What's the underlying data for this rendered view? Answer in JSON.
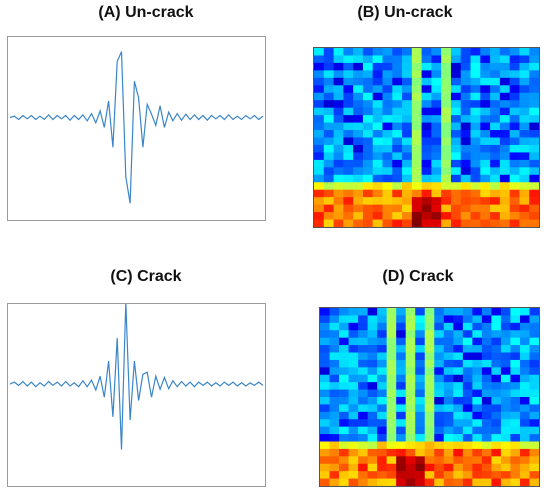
{
  "panels": {
    "a_title": "(A) Un-crack",
    "b_title": "(B) Un-crack",
    "c_title": "(C) Crack",
    "d_title": "(D) Crack"
  },
  "colors": {
    "signal": "#3a86c8",
    "frame": "#9a9a9a"
  },
  "chart_data": [
    {
      "type": "line",
      "title": "(A) Un-crack",
      "xlabel": "",
      "ylabel": "",
      "grid": false,
      "series": [
        {
          "values": [
            0,
            0.02,
            -0.03,
            0.03,
            -0.02,
            0.03,
            -0.03,
            0.02,
            -0.03,
            0.04,
            -0.03,
            0.03,
            -0.02,
            0.03,
            -0.04,
            0.03,
            -0.03,
            0.04,
            -0.05,
            0.06,
            -0.08,
            0.1,
            -0.15,
            0.25,
            -0.45,
            0.85,
            1.0,
            -0.9,
            -1.3,
            0.55,
            0.3,
            -0.45,
            0.2,
            0.05,
            -0.12,
            0.18,
            -0.15,
            0.08,
            -0.05,
            0.06,
            -0.04,
            0.05,
            -0.03,
            0.04,
            -0.03,
            0.03,
            -0.04,
            0.03,
            -0.02,
            0.03,
            -0.03,
            0.04,
            -0.03,
            0.02,
            -0.03,
            0.03,
            -0.02,
            0.03,
            -0.03,
            0.02
          ]
        }
      ]
    },
    {
      "type": "heatmap",
      "title": "(B) Un-crack",
      "grid": false,
      "rows": 24,
      "cols": 23,
      "bright_columns": [
        10,
        13
      ],
      "band_rows_from_bottom": 6,
      "hotspot_col": 11
    },
    {
      "type": "line",
      "title": "(C) Crack",
      "xlabel": "",
      "ylabel": "",
      "grid": false,
      "series": [
        {
          "values": [
            0,
            0.03,
            -0.02,
            0.04,
            -0.03,
            0.03,
            -0.04,
            0.02,
            -0.03,
            0.04,
            -0.02,
            0.03,
            -0.03,
            0.04,
            -0.03,
            0.02,
            -0.04,
            0.05,
            -0.04,
            0.06,
            -0.09,
            0.12,
            -0.2,
            0.35,
            -0.5,
            0.7,
            -1.0,
            1.25,
            -0.55,
            0.35,
            -0.25,
            0.15,
            0.18,
            -0.2,
            0.12,
            -0.08,
            0.1,
            -0.07,
            0.05,
            -0.04,
            0.04,
            -0.03,
            0.03,
            -0.04,
            0.03,
            -0.02,
            0.03,
            -0.03,
            0.02,
            -0.03,
            0.03,
            -0.02,
            0.03,
            -0.03,
            0.02,
            -0.03,
            0.02,
            -0.02,
            0.03,
            -0.02
          ]
        }
      ]
    },
    {
      "type": "heatmap",
      "title": "(D) Crack",
      "grid": false,
      "rows": 24,
      "cols": 23,
      "bright_columns": [
        7,
        9,
        11
      ],
      "band_rows_from_bottom": 6,
      "hotspot_col": 9
    }
  ]
}
